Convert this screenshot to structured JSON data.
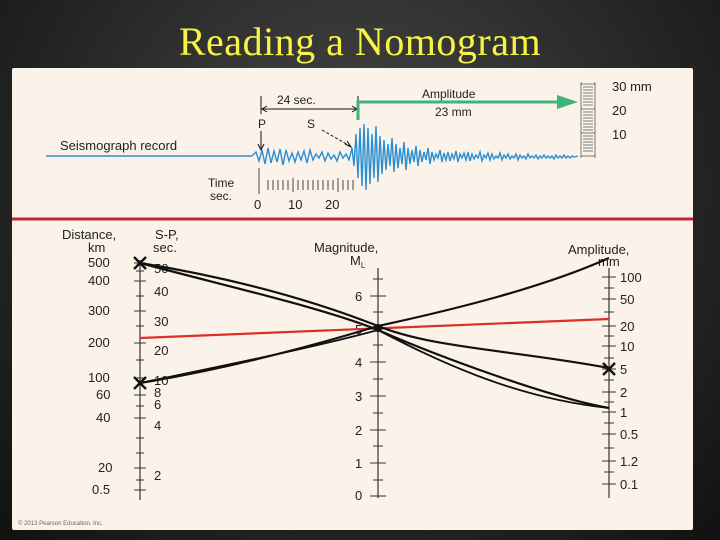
{
  "slide": {
    "title": "Reading a Nomogram"
  },
  "seismogram": {
    "record_label": "Seismograph record",
    "interval_label": "24 sec.",
    "p_label": "P",
    "s_label": "S",
    "amplitude_label": "Amplitude",
    "amplitude_value": "23 mm",
    "time_label_1": "Time",
    "time_label_2": "sec.",
    "time_ticks": [
      "0",
      "10",
      "20"
    ],
    "mm_ticks": [
      "30 mm",
      "20",
      "10"
    ]
  },
  "nomogram": {
    "distance_header_1": "Distance,",
    "distance_header_2": "km",
    "sp_header_1": "S-P,",
    "sp_header_2": "sec.",
    "magnitude_header_1": "Magnitude,",
    "magnitude_header_2": "M",
    "magnitude_sub": "L",
    "amplitude_header_1": "Amplitude,",
    "amplitude_header_2": "mm",
    "distance_ticks": [
      "500",
      "400",
      "300",
      "200",
      "100",
      "60",
      "40",
      "20",
      "0.5"
    ],
    "sp_ticks": [
      "50",
      "40",
      "30",
      "20",
      "10",
      "8",
      "6",
      "4",
      "2"
    ],
    "magnitude_ticks": [
      "6",
      "5",
      "4",
      "3",
      "2",
      "1",
      "0"
    ],
    "amplitude_ticks": [
      "100",
      "50",
      "20",
      "10",
      "5",
      "2",
      "1",
      "0.5",
      "1.2",
      "0.1"
    ]
  },
  "copyright": "© 2013 Pearson Education, Inc.",
  "colors": {
    "title": "#f5f542",
    "trace": "#2a8fd4",
    "arrow": "#3bb57a",
    "divider": "#c0272d",
    "red_line": "#d9302a",
    "ink": "#111111"
  }
}
